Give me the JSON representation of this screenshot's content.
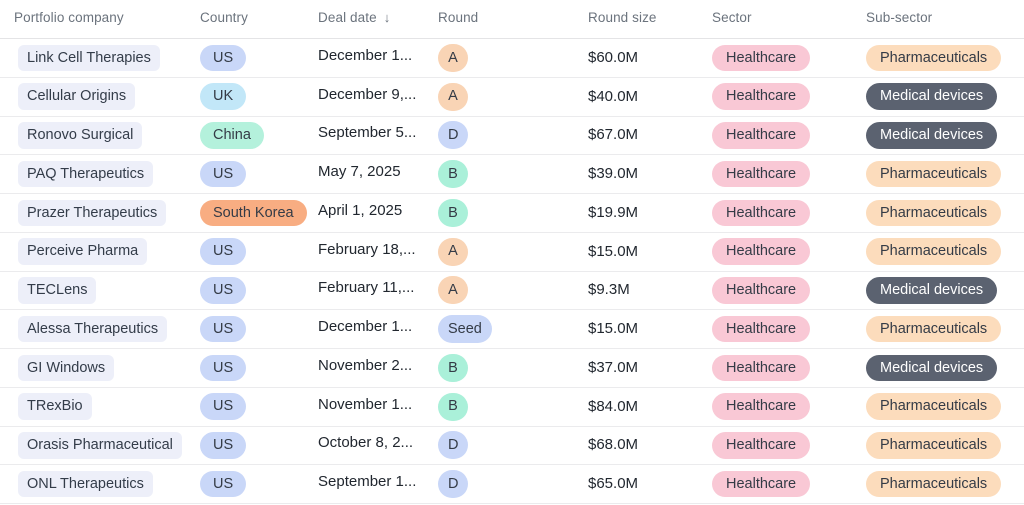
{
  "table": {
    "columns": [
      {
        "label": "Portfolio company"
      },
      {
        "label": "Country"
      },
      {
        "label": "Deal date",
        "sorted": "desc"
      },
      {
        "label": "Round"
      },
      {
        "label": "Round size"
      },
      {
        "label": "Sector"
      },
      {
        "label": "Sub-sector"
      }
    ],
    "sort_desc_icon": "↓",
    "rows": [
      {
        "company": "Link Cell Therapies",
        "country": "US",
        "deal_date": "December 1...",
        "round": "A",
        "round_size": "$60.0M",
        "sector": "Healthcare",
        "subsector": "Pharmaceuticals"
      },
      {
        "company": "Cellular Origins",
        "country": "UK",
        "deal_date": "December 9,...",
        "round": "A",
        "round_size": "$40.0M",
        "sector": "Healthcare",
        "subsector": "Medical devices"
      },
      {
        "company": "Ronovo Surgical",
        "country": "China",
        "deal_date": "September 5...",
        "round": "D",
        "round_size": "$67.0M",
        "sector": "Healthcare",
        "subsector": "Medical devices"
      },
      {
        "company": "PAQ Therapeutics",
        "country": "US",
        "deal_date": "May 7, 2025",
        "round": "B",
        "round_size": "$39.0M",
        "sector": "Healthcare",
        "subsector": "Pharmaceuticals"
      },
      {
        "company": "Prazer Therapeutics",
        "country": "South Korea",
        "deal_date": "April 1, 2025",
        "round": "B",
        "round_size": "$19.9M",
        "sector": "Healthcare",
        "subsector": "Pharmaceuticals"
      },
      {
        "company": "Perceive Pharma",
        "country": "US",
        "deal_date": "February 18,...",
        "round": "A",
        "round_size": "$15.0M",
        "sector": "Healthcare",
        "subsector": "Pharmaceuticals"
      },
      {
        "company": "TECLens",
        "country": "US",
        "deal_date": "February 11,...",
        "round": "A",
        "round_size": "$9.3M",
        "sector": "Healthcare",
        "subsector": "Medical devices"
      },
      {
        "company": "Alessa Therapeutics",
        "country": "US",
        "deal_date": "December 1...",
        "round": "Seed",
        "round_size": "$15.0M",
        "sector": "Healthcare",
        "subsector": "Pharmaceuticals"
      },
      {
        "company": "GI Windows",
        "country": "US",
        "deal_date": "November 2...",
        "round": "B",
        "round_size": "$37.0M",
        "sector": "Healthcare",
        "subsector": "Medical devices"
      },
      {
        "company": "TRexBio",
        "country": "US",
        "deal_date": "November 1...",
        "round": "B",
        "round_size": "$84.0M",
        "sector": "Healthcare",
        "subsector": "Pharmaceuticals"
      },
      {
        "company": "Orasis Pharmaceutical",
        "country": "US",
        "deal_date": "October 8, 2...",
        "round": "D",
        "round_size": "$68.0M",
        "sector": "Healthcare",
        "subsector": "Pharmaceuticals"
      },
      {
        "company": "ONL Therapeutics",
        "country": "US",
        "deal_date": "September 1...",
        "round": "D",
        "round_size": "$65.0M",
        "sector": "Healthcare",
        "subsector": "Pharmaceuticals"
      }
    ]
  },
  "colors": {
    "company_pill_bg": "#edeff9",
    "country": {
      "US": "#c9d7f8",
      "UK": "#c2e7f8",
      "China": "#b4f1dc",
      "South Korea": "#f8ad82"
    },
    "round": {
      "A": "#f9d4b5",
      "B": "#aaf0d9",
      "D": "#c9d7f8",
      "Seed": "#c9d7f8"
    },
    "sector": {
      "Healthcare": "#f9c8d5"
    },
    "subsector": {
      "Pharmaceuticals": "#fcdcbc",
      "Medical devices": "#5b6270"
    },
    "dark_pill_text": "#ffffff",
    "header_text": "#6b737d",
    "cell_text": "#21272f"
  }
}
